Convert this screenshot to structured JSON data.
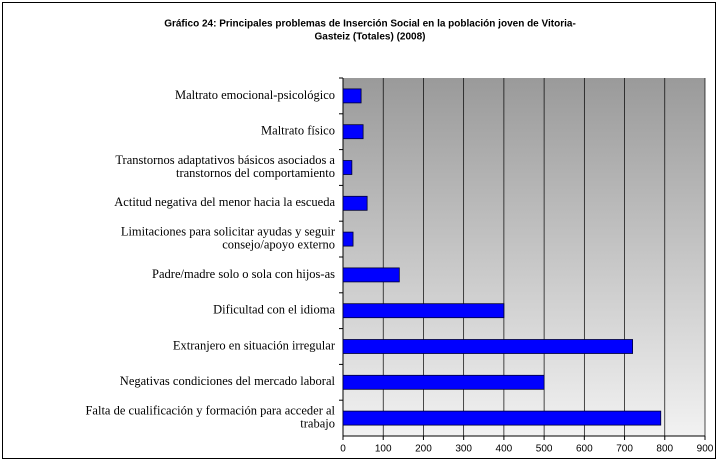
{
  "chart_data": {
    "type": "bar",
    "orientation": "horizontal",
    "title": "Gráfico 24: Principales problemas de Inserción Social en la población joven de Vitoria-\nGasteiz (Totales)  (2008)",
    "categories": [
      "Maltrato emocional-psicológico",
      "Maltrato físico",
      "Transtornos adaptativos básicos asociados a\ntranstornos del comportamiento",
      "Actitud negativa del menor hacia la escueda",
      "Limitaciones para solicitar ayudas y seguir\nconsejo/apoyo externo",
      "Padre/madre solo o sola con hijos-as",
      "Dificultad con el idioma",
      "Extranjero en situación irregular",
      "Negativas condiciones del mercado laboral",
      "Falta de cualificación y formación para acceder al\ntrabajo"
    ],
    "values": [
      45,
      50,
      22,
      60,
      25,
      140,
      400,
      720,
      500,
      790
    ],
    "color": "#0000ff",
    "xlim": [
      0,
      900
    ],
    "xticks": [
      0,
      100,
      200,
      300,
      400,
      500,
      600,
      700,
      800,
      900
    ],
    "grid": true
  }
}
